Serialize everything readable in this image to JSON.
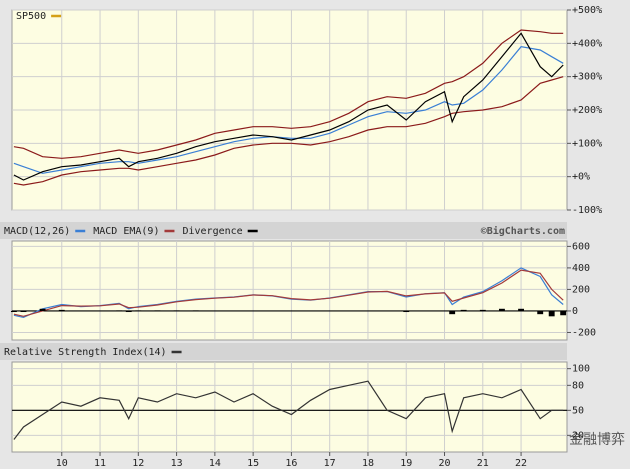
{
  "chart_data": [
    {
      "type": "line",
      "legend_marker_color": "#d4a017",
      "xlim": [
        8.7,
        23.2
      ],
      "xticks": [
        10,
        11,
        12,
        13,
        14,
        15,
        16,
        17,
        18,
        19,
        20,
        21,
        22
      ],
      "ylim": [
        -100,
        500
      ],
      "yticks": [
        {
          "value": 500,
          "label": "+500%"
        },
        {
          "value": 400,
          "label": "+400%"
        },
        {
          "value": 300,
          "label": "+300%"
        },
        {
          "value": 200,
          "label": "+200%"
        },
        {
          "value": 100,
          "label": "+100%"
        },
        {
          "value": 0,
          "label": "+0%"
        },
        {
          "value": -100,
          "label": "-100%"
        }
      ],
      "grid": true,
      "x": [
        8.75,
        9.0,
        9.5,
        10.0,
        10.5,
        11.0,
        11.5,
        11.75,
        12.0,
        12.5,
        13.0,
        13.5,
        14.0,
        14.5,
        15.0,
        15.5,
        16.0,
        16.5,
        17.0,
        17.5,
        18.0,
        18.5,
        19.0,
        19.5,
        20.0,
        20.2,
        20.5,
        21.0,
        21.5,
        22.0,
        22.5,
        22.8,
        23.1
      ],
      "series": [
        {
          "color": "#8b1a1a",
          "values": [
            90,
            85,
            60,
            55,
            60,
            70,
            80,
            75,
            70,
            80,
            95,
            110,
            130,
            140,
            150,
            150,
            145,
            150,
            165,
            190,
            225,
            240,
            235,
            250,
            280,
            285,
            300,
            340,
            400,
            440,
            435,
            430,
            430
          ]
        },
        {
          "color": "#8b1a1a",
          "values": [
            -20,
            -25,
            -15,
            5,
            15,
            20,
            25,
            25,
            20,
            30,
            40,
            50,
            65,
            85,
            95,
            100,
            100,
            95,
            105,
            120,
            140,
            150,
            150,
            160,
            180,
            190,
            195,
            200,
            210,
            230,
            280,
            290,
            300
          ]
        },
        {
          "color": "#3a7fd5",
          "values": [
            40,
            30,
            10,
            20,
            30,
            40,
            45,
            45,
            40,
            50,
            60,
            75,
            90,
            105,
            115,
            120,
            115,
            115,
            130,
            155,
            180,
            195,
            190,
            200,
            225,
            215,
            220,
            260,
            320,
            390,
            380,
            360,
            340
          ]
        },
        {
          "name": "SP500",
          "color": "#000000",
          "values": [
            5,
            -10,
            15,
            30,
            35,
            45,
            55,
            30,
            45,
            55,
            70,
            90,
            105,
            115,
            125,
            120,
            110,
            125,
            140,
            165,
            200,
            215,
            170,
            225,
            255,
            165,
            240,
            290,
            360,
            430,
            330,
            300,
            335
          ]
        }
      ]
    },
    {
      "type": "line",
      "source": "©BigCharts.com",
      "xlim": [
        8.7,
        23.2
      ],
      "xticks": [
        10,
        11,
        12,
        13,
        14,
        15,
        16,
        17,
        18,
        19,
        20,
        21,
        22
      ],
      "ylim": [
        -270,
        650
      ],
      "yticks": [
        600,
        400,
        200,
        0,
        -200
      ],
      "grid": true,
      "hline": 0,
      "x": [
        8.75,
        9.0,
        9.5,
        10.0,
        10.5,
        11.0,
        11.5,
        11.75,
        12.0,
        12.5,
        13.0,
        13.5,
        14.0,
        14.5,
        15.0,
        15.5,
        16.0,
        16.5,
        17.0,
        17.5,
        18.0,
        18.5,
        19.0,
        19.5,
        20.0,
        20.2,
        20.5,
        21.0,
        21.5,
        22.0,
        22.5,
        22.8,
        23.1
      ],
      "series": [
        {
          "name": "MACD(12,26)",
          "color": "#3a7fd5",
          "values": [
            -40,
            -60,
            20,
            60,
            40,
            50,
            70,
            20,
            40,
            60,
            90,
            110,
            120,
            130,
            150,
            140,
            110,
            100,
            120,
            150,
            180,
            180,
            130,
            160,
            170,
            60,
            130,
            180,
            280,
            400,
            320,
            150,
            60
          ]
        },
        {
          "name": "MACD EMA(9)",
          "color": "#a33a3a",
          "values": [
            -30,
            -50,
            0,
            50,
            45,
            48,
            65,
            30,
            35,
            55,
            85,
            105,
            118,
            128,
            148,
            142,
            115,
            103,
            118,
            146,
            176,
            182,
            140,
            158,
            168,
            90,
            120,
            170,
            260,
            380,
            350,
            200,
            100
          ]
        },
        {
          "name": "Divergence",
          "color": "#000000",
          "type": "bar",
          "values": [
            -10,
            -10,
            20,
            10,
            -5,
            2,
            5,
            -10,
            5,
            5,
            5,
            5,
            2,
            2,
            2,
            -2,
            -5,
            -3,
            2,
            4,
            4,
            -2,
            -10,
            2,
            2,
            -30,
            10,
            10,
            20,
            20,
            -30,
            -50,
            -40
          ]
        }
      ]
    },
    {
      "type": "line",
      "xlim": [
        8.7,
        23.2
      ],
      "xticks": [
        10,
        11,
        12,
        13,
        14,
        15,
        16,
        17,
        18,
        19,
        20,
        21,
        22
      ],
      "ylim": [
        0,
        108
      ],
      "yticks": [
        100,
        80,
        50,
        20
      ],
      "grid": true,
      "hline": 50,
      "x": [
        8.75,
        9.0,
        9.5,
        10.0,
        10.5,
        11.0,
        11.5,
        11.75,
        12.0,
        12.5,
        13.0,
        13.5,
        14.0,
        14.5,
        15.0,
        15.5,
        16.0,
        16.5,
        17.0,
        17.5,
        18.0,
        18.5,
        19.0,
        19.5,
        20.0,
        20.2,
        20.5,
        21.0,
        21.5,
        22.0,
        22.5,
        22.8,
        23.1
      ],
      "series": [
        {
          "name": "Relative Strength Index(14)",
          "color": "#333333",
          "values": [
            15,
            30,
            45,
            60,
            55,
            65,
            62,
            40,
            65,
            60,
            70,
            65,
            72,
            60,
            70,
            55,
            45,
            62,
            75,
            80,
            85,
            50,
            40,
            65,
            70,
            25,
            65,
            70,
            65,
            75,
            40,
            50,
            50
          ]
        }
      ]
    }
  ],
  "watermark": "金融博弈"
}
